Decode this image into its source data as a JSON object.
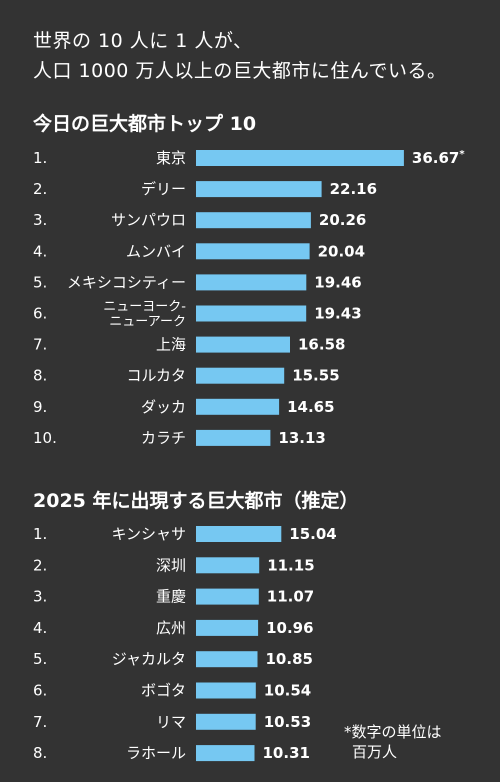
{
  "intro": {
    "line1": "世界の 10 人に 1 人が、",
    "line2": "人口 1000 万人以上の巨大都市に住んでいる。"
  },
  "note": {
    "line1": "*数字の単位は",
    "line2": "百万人"
  },
  "colors": {
    "background": "#333333",
    "bar": "#76c8f2",
    "text": "#ffffff"
  },
  "chart_data": [
    {
      "type": "bar",
      "orientation": "horizontal",
      "title": "今日の巨大都市トップ 10",
      "ranks": [
        "1.",
        "2.",
        "3.",
        "4.",
        "5.",
        "6.",
        "7.",
        "8.",
        "9.",
        "10."
      ],
      "categories": [
        "東京",
        "デリー",
        "サンパウロ",
        "ムンバイ",
        "メキシコシティー",
        "ニューヨーク-ニューアーク",
        "上海",
        "コルカタ",
        "ダッカ",
        "カラチ"
      ],
      "category_lines": [
        [
          "東京"
        ],
        [
          "デリー"
        ],
        [
          "サンパウロ"
        ],
        [
          "ムンバイ"
        ],
        [
          "メキシコシティー"
        ],
        [
          "ニューヨーク-",
          "ニューアーク"
        ],
        [
          "上海"
        ],
        [
          "コルカタ"
        ],
        [
          "ダッカ"
        ],
        [
          "カラチ"
        ]
      ],
      "values": [
        36.67,
        22.16,
        20.26,
        20.04,
        19.46,
        19.43,
        16.58,
        15.55,
        14.65,
        13.13
      ],
      "value_labels": [
        "36.67*",
        "22.16",
        "20.26",
        "20.04",
        "19.46",
        "19.43",
        "16.58",
        "15.55",
        "14.65",
        "13.13"
      ]
    },
    {
      "type": "bar",
      "orientation": "horizontal",
      "title": "2025 年に出現する巨大都市（推定）",
      "ranks": [
        "1.",
        "2.",
        "3.",
        "4.",
        "5.",
        "6.",
        "7.",
        "8."
      ],
      "categories": [
        "キンシャサ",
        "深圳",
        "重慶",
        "広州",
        "ジャカルタ",
        "ボゴタ",
        "リマ",
        "ラホール"
      ],
      "category_lines": [
        [
          "キンシャサ"
        ],
        [
          "深圳"
        ],
        [
          "重慶"
        ],
        [
          "広州"
        ],
        [
          "ジャカルタ"
        ],
        [
          "ボゴタ"
        ],
        [
          "リマ"
        ],
        [
          "ラホール"
        ]
      ],
      "values": [
        15.04,
        11.15,
        11.07,
        10.96,
        10.85,
        10.54,
        10.53,
        10.31
      ],
      "value_labels": [
        "15.04",
        "11.15",
        "11.07",
        "10.96",
        "10.85",
        "10.54",
        "10.53",
        "10.31"
      ]
    }
  ]
}
